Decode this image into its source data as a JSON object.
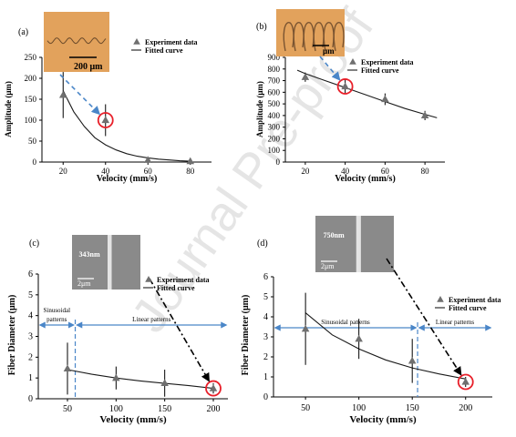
{
  "watermark": "Journal Pre-proof",
  "colors": {
    "axis": "#000000",
    "marker": "#6f6f6f",
    "curve": "#1a1a1a",
    "dashed_arrow": "#4a86c8",
    "dashdot_arrow": "#000000",
    "highlight_circle": "#e8202a",
    "pattern_arrow": "#4a86c8",
    "divider": "#4a86c8",
    "optical_bg": "#e2a25c",
    "sem_bg": "#8a8a8a",
    "watermark": "#cfcfcf"
  },
  "chart_data": [
    {
      "panel": "(a)",
      "type": "scatter",
      "xlabel": "Velocity (mm/s)",
      "ylabel": "Amplitude (μm)",
      "xlim": [
        10,
        90
      ],
      "ylim": [
        0,
        250
      ],
      "xticks": [
        20,
        40,
        60,
        80
      ],
      "yticks": [
        0,
        50,
        100,
        150,
        200,
        250
      ],
      "series": [
        {
          "name": "Experiment data",
          "kind": "points",
          "x": [
            20,
            40,
            60,
            80
          ],
          "y": [
            160,
            100,
            5,
            2
          ],
          "err": [
            55,
            38,
            5,
            2
          ]
        },
        {
          "name": "Fitted curve",
          "kind": "curve",
          "x": [
            20,
            25,
            30,
            35,
            40,
            45,
            50,
            55,
            60,
            65,
            70,
            75,
            80
          ],
          "y": [
            170,
            120,
            85,
            58,
            41,
            29,
            20,
            14,
            10,
            7,
            5,
            3,
            2
          ]
        }
      ],
      "highlight": {
        "x": 40,
        "y": 100
      },
      "inset": {
        "kind": "optical",
        "scale_label": "200 μm",
        "pattern": "sinusoidal"
      },
      "arrow": {
        "style": "dashed",
        "target": {
          "x": 40,
          "y": 100
        }
      },
      "legend": [
        "Experiment data",
        "Fitted curve"
      ],
      "legend_position": "top-right"
    },
    {
      "panel": "(b)",
      "type": "scatter",
      "xlabel": "Velocity (mm/s)",
      "ylabel": "Amplitude (μm)",
      "xlim": [
        10,
        90
      ],
      "ylim": [
        0,
        900
      ],
      "xticks": [
        20,
        40,
        60,
        80
      ],
      "yticks": [
        0,
        100,
        200,
        300,
        400,
        500,
        600,
        700,
        800,
        900
      ],
      "series": [
        {
          "name": "Experiment data",
          "kind": "points",
          "x": [
            20,
            40,
            60,
            80
          ],
          "y": [
            730,
            650,
            540,
            400
          ],
          "err": [
            40,
            60,
            50,
            40
          ]
        },
        {
          "name": "Fitted curve",
          "kind": "curve",
          "x": [
            16,
            20,
            30,
            40,
            50,
            60,
            70,
            80,
            86
          ],
          "y": [
            790,
            760,
            700,
            640,
            580,
            520,
            460,
            410,
            380
          ]
        }
      ],
      "highlight": {
        "x": 40,
        "y": 650
      },
      "inset": {
        "kind": "optical",
        "scale_label": "μm",
        "pattern": "loops"
      },
      "arrow": {
        "style": "dashed",
        "target": {
          "x": 40,
          "y": 650
        }
      },
      "legend": [
        "Experiment data",
        "Fitted curve"
      ],
      "legend_position": "top-right"
    },
    {
      "panel": "(c)",
      "type": "scatter",
      "xlabel": "Velocity (mm/s)",
      "ylabel": "Fiber Diameter (μm)",
      "xlim": [
        20,
        215
      ],
      "ylim": [
        0,
        6
      ],
      "xticks": [
        50,
        100,
        150,
        200
      ],
      "yticks": [
        0,
        1,
        2,
        3,
        4,
        5,
        6
      ],
      "series": [
        {
          "name": "Experiment data",
          "kind": "points",
          "x": [
            50,
            100,
            150,
            200
          ],
          "y": [
            1.45,
            1.0,
            0.75,
            0.5
          ],
          "err": [
            1.25,
            0.55,
            0.65,
            0.25
          ]
        },
        {
          "name": "Fitted curve",
          "kind": "curve",
          "x": [
            50,
            75,
            100,
            125,
            150,
            175,
            200
          ],
          "y": [
            1.4,
            1.18,
            1.0,
            0.86,
            0.74,
            0.63,
            0.5
          ]
        }
      ],
      "highlight": {
        "x": 200,
        "y": 0.5
      },
      "inset": {
        "kind": "sem",
        "size_label": "343nm",
        "scale_label": "2μm"
      },
      "arrow": {
        "style": "dashdot",
        "target": {
          "x": 200,
          "y": 0.5
        }
      },
      "regions": [
        {
          "label_lines": [
            "Sinusoidal",
            "patterns"
          ],
          "from": 20,
          "to": 58
        },
        {
          "label_lines": [
            "Linear patterns"
          ],
          "from": 58,
          "to": 215
        }
      ],
      "divider_x": 58,
      "legend": [
        "Experiment data",
        "Fitted curve"
      ],
      "legend_position": "top-right"
    },
    {
      "panel": "(d)",
      "type": "scatter",
      "xlabel": "Velocity (mm/s)",
      "ylabel": "Fiber Diameter (μm)",
      "xlim": [
        20,
        225
      ],
      "ylim": [
        0,
        6
      ],
      "xticks": [
        50,
        100,
        150,
        200
      ],
      "yticks": [
        0,
        1,
        2,
        3,
        4,
        5,
        6
      ],
      "series": [
        {
          "name": "Experiment data",
          "kind": "points",
          "x": [
            50,
            100,
            150,
            200
          ],
          "y": [
            3.4,
            2.9,
            1.8,
            0.75
          ],
          "err": [
            1.8,
            1.0,
            1.1,
            0.25
          ]
        },
        {
          "name": "Fitted curve",
          "kind": "curve",
          "x": [
            50,
            75,
            100,
            125,
            150,
            175,
            200
          ],
          "y": [
            4.2,
            3.1,
            2.4,
            1.85,
            1.45,
            1.15,
            0.9
          ]
        }
      ],
      "highlight": {
        "x": 200,
        "y": 0.75
      },
      "inset": {
        "kind": "sem",
        "size_label": "750nm",
        "scale_label": "2μm"
      },
      "arrow": {
        "style": "dashdot",
        "target": {
          "x": 200,
          "y": 0.75
        }
      },
      "regions": [
        {
          "label_lines": [
            "Sinusoidal patterns"
          ],
          "from": 20,
          "to": 155
        },
        {
          "label_lines": [
            "Linear patterns"
          ],
          "from": 155,
          "to": 225
        }
      ],
      "divider_x": 155,
      "legend": [
        "Experiment data",
        "Fitted curve"
      ],
      "legend_position": "top-right"
    }
  ]
}
